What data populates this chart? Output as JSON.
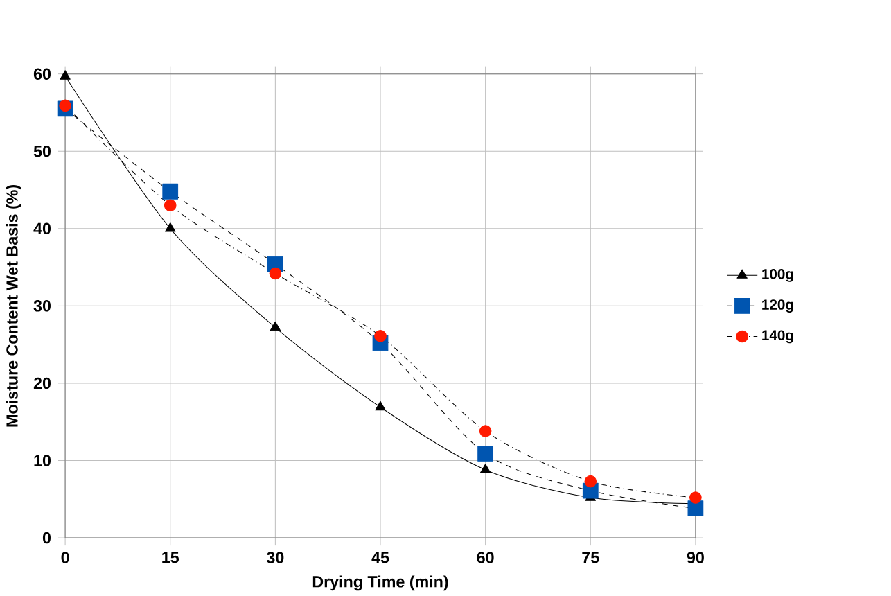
{
  "chart_data": {
    "type": "line",
    "xlabel": "Drying Time (min)",
    "ylabel": "Moisture Content Wet Basis (%)",
    "x": [
      0,
      15,
      30,
      45,
      60,
      75,
      90
    ],
    "series": [
      {
        "name": "100g",
        "color": "#000000",
        "marker": "triangle",
        "line_style": "solid",
        "values": [
          59.7,
          40.0,
          27.2,
          16.9,
          8.8,
          5.2,
          4.4
        ]
      },
      {
        "name": "120g",
        "color": "#0055b0",
        "marker": "square",
        "line_style": "dashed",
        "values": [
          55.5,
          44.8,
          35.4,
          25.2,
          10.9,
          6.1,
          3.8
        ]
      },
      {
        "name": "140g",
        "color": "#ff1a00",
        "marker": "circle",
        "line_style": "dotted",
        "values": [
          55.9,
          43.0,
          34.2,
          26.1,
          13.8,
          7.3,
          5.2
        ]
      }
    ],
    "xlim": [
      0,
      90
    ],
    "xticks": [
      0,
      15,
      30,
      45,
      60,
      75,
      90
    ],
    "ylim": [
      0,
      60
    ],
    "yticks": [
      0,
      10,
      20,
      30,
      40,
      50,
      60
    ],
    "grid": true,
    "legend": "right"
  }
}
